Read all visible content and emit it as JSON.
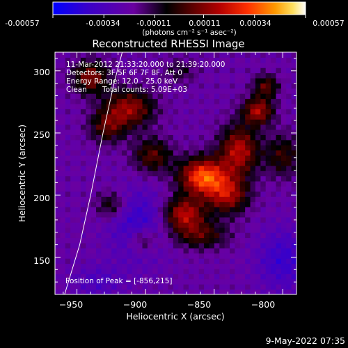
{
  "colorbar": {
    "ticks": [
      "-0.00057",
      "-0.00034",
      "-0.00011",
      "0.00011",
      "0.00034",
      "0.00057"
    ],
    "tick_values": [
      -0.00057,
      -0.00034,
      -0.00011,
      0.00011,
      0.00034,
      0.00057
    ],
    "units_label": "(photons cm⁻² s⁻¹ asec⁻²)",
    "colors": [
      "#0000ff",
      "#3a00c8",
      "#6a00a0",
      "#000000",
      "#5a0000",
      "#b40000",
      "#ff3000",
      "#ff9a00",
      "#ffe060",
      "#ffffff"
    ]
  },
  "chart_data": {
    "type": "heatmap",
    "title": "Reconstructed RHESSI Image",
    "xlabel": "Heliocentric X (arcsec)",
    "ylabel": "Heliocentric Y (arcsec)",
    "xlim": [
      -966,
      -790
    ],
    "ylim": [
      120,
      315
    ],
    "xticks": [
      -950,
      -900,
      -850,
      -800
    ],
    "yticks": [
      150,
      200,
      250,
      300
    ],
    "xtick_labels": [
      "−950",
      "−900",
      "−850",
      "−800"
    ],
    "ytick_labels": [
      "150",
      "200",
      "250",
      "300"
    ],
    "info_lines": [
      "11-Mar-2012 21:33:20.000 to 21:39:20.000",
      "Detectors: 3F 5F 6F 7F 8F, Att 0",
      "Energy Range: 12.0 - 25.0 keV"
    ],
    "clean_label": "Clean",
    "total_counts": "Total counts: 5.09E+03",
    "peak_label": "Position of Peak = [-856,215]",
    "peak": [
      -856,
      215
    ],
    "limb_points": [
      [
        -959,
        120
      ],
      [
        -948,
        160
      ],
      [
        -940,
        200
      ],
      [
        -931,
        250
      ],
      [
        -923,
        290
      ],
      [
        -917,
        315
      ]
    ]
  },
  "footer": {
    "timestamp": "9-May-2022 07:35"
  }
}
